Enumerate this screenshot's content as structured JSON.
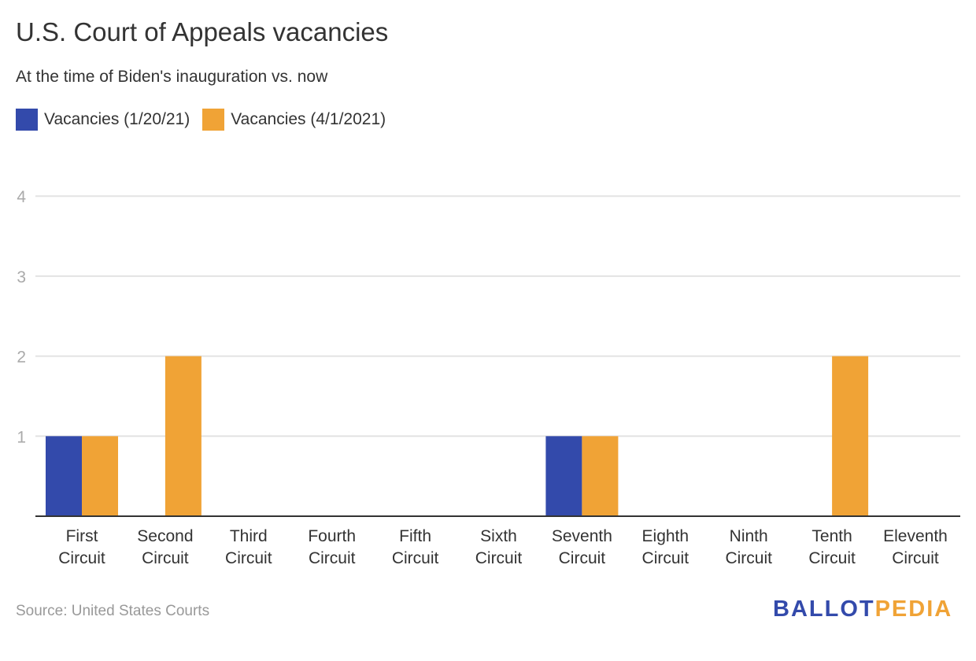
{
  "chart_data": {
    "type": "bar",
    "title": "U.S. Court of Appeals vacancies",
    "subtitle": "At the time of Biden's inauguration vs. now",
    "categories": [
      [
        "First",
        "Circuit"
      ],
      [
        "Second",
        "Circuit"
      ],
      [
        "Third",
        "Circuit"
      ],
      [
        "Fourth",
        "Circuit"
      ],
      [
        "Fifth",
        "Circuit"
      ],
      [
        "Sixth",
        "Circuit"
      ],
      [
        "Seventh",
        "Circuit"
      ],
      [
        "Eighth",
        "Circuit"
      ],
      [
        "Ninth",
        "Circuit"
      ],
      [
        "Tenth",
        "Circuit"
      ],
      [
        "Eleventh",
        "Circuit"
      ]
    ],
    "series": [
      {
        "name": "Vacancies (1/20/21)",
        "color": "#334aab",
        "values": [
          1,
          0,
          0,
          0,
          0,
          0,
          1,
          0,
          0,
          0,
          0
        ]
      },
      {
        "name": "Vacancies (4/1/2021)",
        "color": "#f0a336",
        "values": [
          1,
          2,
          0,
          0,
          0,
          0,
          1,
          0,
          0,
          2,
          0
        ]
      }
    ],
    "yticks": [
      "1",
      "2",
      "3",
      "4"
    ],
    "ylim": [
      0,
      4
    ],
    "grid": true,
    "legend_position": "top-left",
    "xlabel": "",
    "ylabel": ""
  },
  "source": "Source: United States Courts",
  "logo": {
    "part1": "BALLOT",
    "part2": "PEDIA",
    "color1": "#334aab",
    "color2": "#f0a336"
  }
}
